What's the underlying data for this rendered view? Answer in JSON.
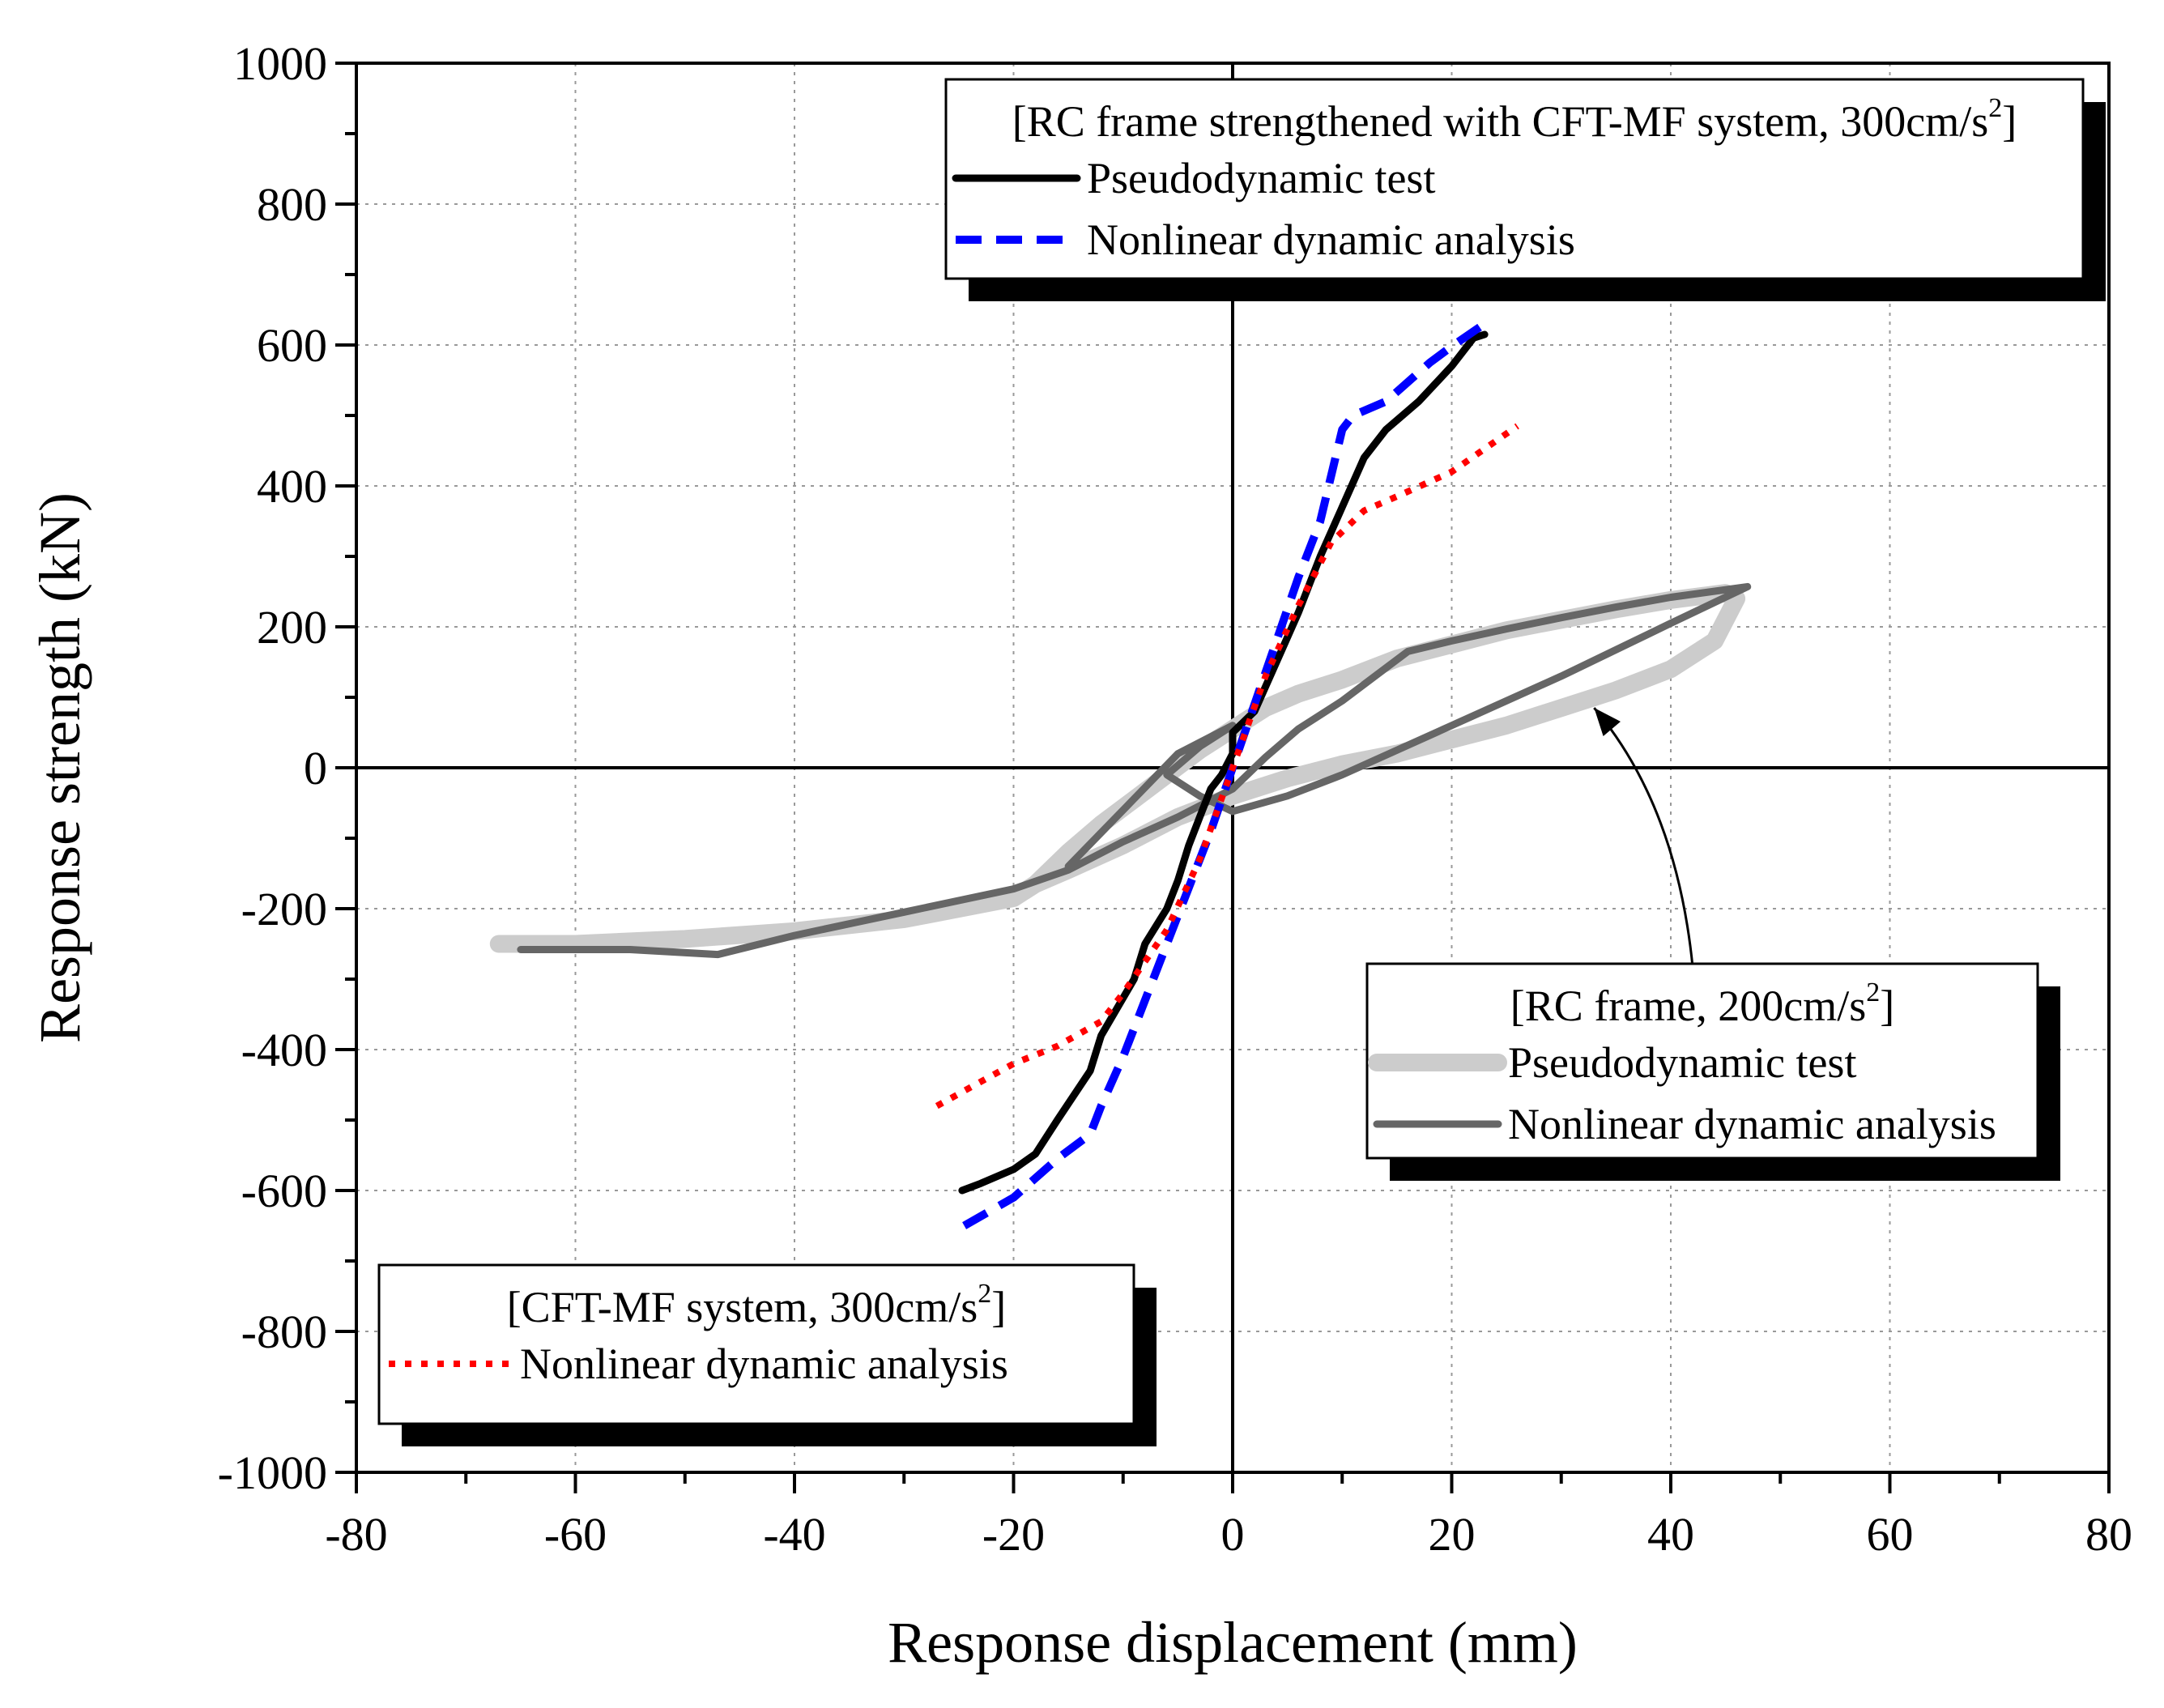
{
  "chart_data": {
    "type": "line",
    "xlabel": "Response displacement (mm)",
    "ylabel": "Response strength (kN)",
    "xlim": [
      -80,
      80
    ],
    "ylim": [
      -1000,
      1000
    ],
    "xticks": [
      "-80",
      "-60",
      "-40",
      "-20",
      "0",
      "20",
      "40",
      "60",
      "80"
    ],
    "yticks": [
      "1000",
      "800",
      "600",
      "400",
      "200",
      "0",
      "-200",
      "-400",
      "-600",
      "-800",
      "-1000"
    ],
    "grid": true,
    "legends": [
      {
        "position": "top-right",
        "title_main": "[RC frame strengthened with CFT-MF system, 300cm/s",
        "title_sup": "2",
        "title_end": "]",
        "entries": [
          {
            "label": "Pseudodynamic test",
            "series": "cft_test"
          },
          {
            "label": "Nonlinear dynamic analysis",
            "series": "cft_analysis"
          }
        ]
      },
      {
        "position": "center-right",
        "title_main": "[RC frame, 200cm/s",
        "title_sup": "2",
        "title_end": "]",
        "entries": [
          {
            "label": "Pseudodynamic test",
            "series": "rc_test"
          },
          {
            "label": "Nonlinear dynamic analysis",
            "series": "rc_analysis"
          }
        ]
      },
      {
        "position": "bottom-left",
        "title_main": "[CFT-MF system, 300cm/s",
        "title_sup": "2",
        "title_end": "]",
        "entries": [
          {
            "label": "Nonlinear dynamic analysis",
            "series": "mf_analysis"
          }
        ]
      }
    ],
    "annotation": {
      "type": "arrow",
      "from": [
        42,
        -283
      ],
      "to": [
        33,
        85
      ]
    },
    "series": [
      {
        "key": "rc_test",
        "color": "#cccccc",
        "style": "solid-thick",
        "points": [
          [
            -67,
            -250
          ],
          [
            -60,
            -250
          ],
          [
            -50,
            -243
          ],
          [
            -40,
            -232
          ],
          [
            -30,
            -215
          ],
          [
            -20,
            -185
          ],
          [
            -18,
            -165
          ],
          [
            -17,
            -150
          ],
          [
            -15,
            -120
          ],
          [
            -12,
            -80
          ],
          [
            -9,
            -45
          ],
          [
            -6,
            -10
          ],
          [
            -3,
            25
          ],
          [
            0,
            55
          ],
          [
            3,
            85
          ],
          [
            6,
            105
          ],
          [
            10,
            125
          ],
          [
            15,
            155
          ],
          [
            20,
            175
          ],
          [
            25,
            195
          ],
          [
            30,
            210
          ],
          [
            35,
            225
          ],
          [
            40,
            238
          ],
          [
            45,
            248
          ],
          [
            46,
            240
          ],
          [
            44,
            180
          ],
          [
            40,
            140
          ],
          [
            35,
            110
          ],
          [
            30,
            85
          ],
          [
            25,
            60
          ],
          [
            20,
            40
          ],
          [
            15,
            20
          ],
          [
            10,
            5
          ],
          [
            5,
            -15
          ],
          [
            0,
            -40
          ],
          [
            -5,
            -70
          ],
          [
            -10,
            -110
          ],
          [
            -15,
            -145
          ],
          [
            -18,
            -165
          ]
        ]
      },
      {
        "key": "rc_analysis",
        "color": "#666666",
        "style": "solid",
        "points": [
          [
            -65,
            -258
          ],
          [
            -55,
            -258
          ],
          [
            -47,
            -265
          ],
          [
            -40,
            -238
          ],
          [
            -30,
            -205
          ],
          [
            -20,
            -172
          ],
          [
            -15,
            -145
          ],
          [
            -10,
            -105
          ],
          [
            -5,
            -70
          ],
          [
            0,
            -30
          ],
          [
            3,
            15
          ],
          [
            6,
            55
          ],
          [
            10,
            95
          ],
          [
            13,
            130
          ],
          [
            16,
            165
          ],
          [
            20,
            180
          ],
          [
            25,
            197
          ],
          [
            30,
            213
          ],
          [
            35,
            228
          ],
          [
            40,
            242
          ],
          [
            47,
            257
          ],
          [
            40,
            205
          ],
          [
            30,
            130
          ],
          [
            20,
            60
          ],
          [
            10,
            -10
          ],
          [
            5,
            -40
          ],
          [
            0,
            -62
          ],
          [
            -3,
            -40
          ],
          [
            -6,
            -10
          ],
          [
            -3,
            30
          ],
          [
            0,
            60
          ],
          [
            -5,
            20
          ],
          [
            -10,
            -60
          ],
          [
            -15,
            -140
          ]
        ]
      },
      {
        "key": "cft_test",
        "color": "#000000",
        "style": "solid",
        "points": [
          [
            -24.7,
            -600
          ],
          [
            -23,
            -590
          ],
          [
            -20,
            -570
          ],
          [
            -18,
            -548
          ],
          [
            -16,
            -500
          ],
          [
            -13,
            -430
          ],
          [
            -12,
            -380
          ],
          [
            -9,
            -300
          ],
          [
            -8,
            -250
          ],
          [
            -6,
            -200
          ],
          [
            -5,
            -160
          ],
          [
            -4,
            -110
          ],
          [
            -3,
            -70
          ],
          [
            -2,
            -30
          ],
          [
            -1,
            -10
          ],
          [
            0,
            20
          ],
          [
            0,
            50
          ],
          [
            2,
            80
          ],
          [
            4,
            150
          ],
          [
            6,
            220
          ],
          [
            8,
            300
          ],
          [
            10,
            370
          ],
          [
            12,
            440
          ],
          [
            14,
            480
          ],
          [
            17,
            520
          ],
          [
            20,
            570
          ],
          [
            22,
            610
          ],
          [
            23,
            615
          ]
        ]
      },
      {
        "key": "cft_analysis",
        "color": "#0000ff",
        "style": "dashed",
        "points": [
          [
            -24.5,
            -650
          ],
          [
            -20,
            -610
          ],
          [
            -16,
            -555
          ],
          [
            -13,
            -520
          ],
          [
            -12,
            -480
          ],
          [
            -10,
            -410
          ],
          [
            -8,
            -330
          ],
          [
            -6,
            -250
          ],
          [
            -4,
            -170
          ],
          [
            -2,
            -90
          ],
          [
            0,
            0
          ],
          [
            2,
            90
          ],
          [
            4,
            180
          ],
          [
            6,
            270
          ],
          [
            8,
            350
          ],
          [
            10,
            480
          ],
          [
            11,
            500
          ],
          [
            14,
            520
          ],
          [
            18,
            575
          ],
          [
            20,
            598
          ],
          [
            23,
            630
          ]
        ]
      },
      {
        "key": "mf_analysis",
        "color": "#ff0000",
        "style": "dotted",
        "points": [
          [
            -27,
            -480
          ],
          [
            -20,
            -420
          ],
          [
            -16,
            -395
          ],
          [
            -12,
            -360
          ],
          [
            -10,
            -320
          ],
          [
            -6,
            -230
          ],
          [
            -3,
            -130
          ],
          [
            0,
            0
          ],
          [
            3,
            130
          ],
          [
            6,
            230
          ],
          [
            9,
            320
          ],
          [
            12,
            365
          ],
          [
            15,
            385
          ],
          [
            20,
            420
          ],
          [
            26,
            485
          ]
        ]
      }
    ]
  }
}
